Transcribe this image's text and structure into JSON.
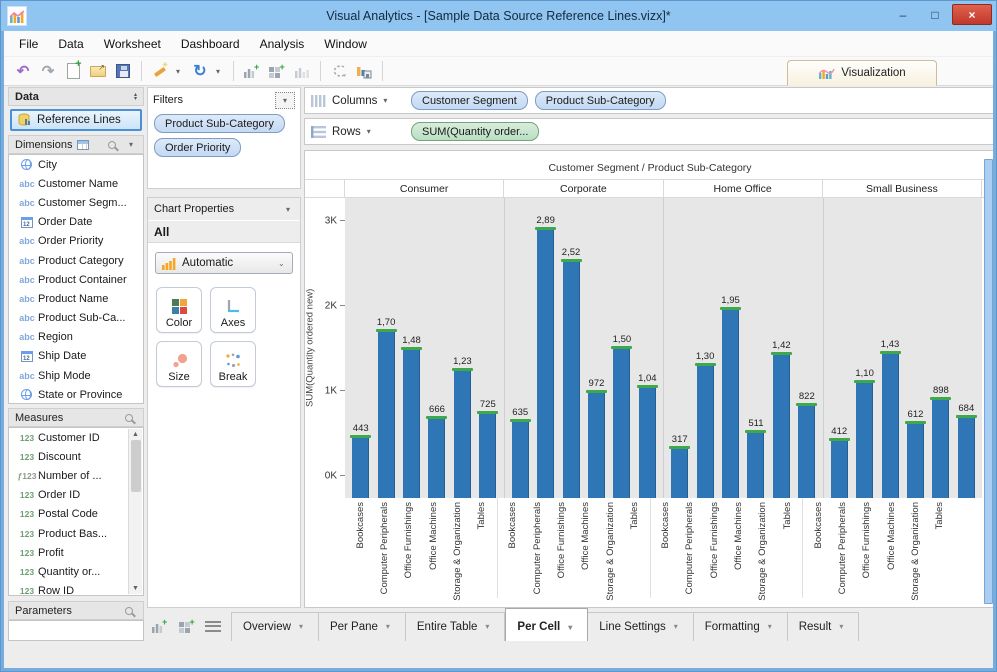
{
  "window": {
    "title": "Visual Analytics - [Sample Data Source Reference Lines.vizx]*"
  },
  "menu": {
    "items": [
      "File",
      "Data",
      "Worksheet",
      "Dashboard",
      "Analysis",
      "Window"
    ]
  },
  "toolbar": {
    "visualization_tab": "Visualization"
  },
  "sidebar": {
    "data_header": "Data",
    "reference_item": "Reference Lines",
    "dimensions": {
      "header": "Dimensions",
      "items": [
        {
          "icon": "globe",
          "label": "City"
        },
        {
          "icon": "abc",
          "label": "Customer Name"
        },
        {
          "icon": "abc",
          "label": "Customer Segm..."
        },
        {
          "icon": "calendar",
          "label": "Order Date"
        },
        {
          "icon": "abc",
          "label": "Order Priority"
        },
        {
          "icon": "abc",
          "label": "Product Category"
        },
        {
          "icon": "abc",
          "label": "Product Container"
        },
        {
          "icon": "abc",
          "label": "Product Name"
        },
        {
          "icon": "abc",
          "label": "Product Sub-Ca..."
        },
        {
          "icon": "abc",
          "label": "Region"
        },
        {
          "icon": "calendar",
          "label": "Ship Date"
        },
        {
          "icon": "abc",
          "label": "Ship Mode"
        },
        {
          "icon": "globe",
          "label": "State or Province"
        }
      ]
    },
    "measures": {
      "header": "Measures",
      "items": [
        {
          "icon": "123",
          "label": "Customer ID"
        },
        {
          "icon": "123",
          "label": "Discount"
        },
        {
          "icon": "fx123",
          "label": "Number of ..."
        },
        {
          "icon": "123",
          "label": "Order ID"
        },
        {
          "icon": "123",
          "label": "Postal Code"
        },
        {
          "icon": "123",
          "label": "Product Bas..."
        },
        {
          "icon": "123",
          "label": "Profit"
        },
        {
          "icon": "123",
          "label": "Quantity or..."
        },
        {
          "icon": "123",
          "label": "Row ID"
        }
      ]
    },
    "parameters": {
      "header": "Parameters"
    }
  },
  "filters": {
    "header": "Filters",
    "pills": [
      "Product Sub-Category",
      "Order Priority"
    ]
  },
  "chart_properties": {
    "header": "Chart Properties",
    "scope_label": "All",
    "mark_type": "Automatic",
    "buttons": [
      "Color",
      "Axes",
      "Size",
      "Break"
    ]
  },
  "shelves": {
    "columns_label": "Columns",
    "columns_pills": [
      "Customer Segment",
      "Product Sub-Category"
    ],
    "rows_label": "Rows",
    "rows_pills": [
      "SUM(Quantity order..."
    ]
  },
  "chart_data": {
    "type": "bar",
    "title": "Customer Segment / Product Sub-Category",
    "ylabel": "SUM(Quantity ordered new)",
    "yticks": [
      {
        "label": "0K",
        "value": 0
      },
      {
        "label": "1K",
        "value": 1000
      },
      {
        "label": "2K",
        "value": 2000
      },
      {
        "label": "3K",
        "value": 3000
      }
    ],
    "ylim": [
      0,
      3300
    ],
    "grid": false,
    "legend": false,
    "categories": [
      "Bookcases",
      "Computer Peripherals",
      "Office Furnishings",
      "Office Machines",
      "Storage & Organization",
      "Tables"
    ],
    "series": [
      {
        "name": "Consumer",
        "values": [
          443,
          1700,
          1480,
          666,
          1230,
          725
        ],
        "bar_labels": [
          "443",
          "1,70",
          "1,48",
          "666",
          "1,23",
          "725"
        ]
      },
      {
        "name": "Corporate",
        "values": [
          635,
          2890,
          2520,
          972,
          1500,
          1040
        ],
        "bar_labels": [
          "635",
          "2,89",
          "2,52",
          "972",
          "1,50",
          "1,04"
        ]
      },
      {
        "name": "Home Office",
        "values": [
          317,
          1300,
          1950,
          511,
          1420,
          822
        ],
        "bar_labels": [
          "317",
          "1,30",
          "1,95",
          "511",
          "1,42",
          "822"
        ]
      },
      {
        "name": "Small Business",
        "values": [
          412,
          1100,
          1430,
          612,
          898,
          684
        ],
        "bar_labels": [
          "412",
          "1,10",
          "1,43",
          "612",
          "898",
          "684"
        ]
      }
    ],
    "bar_color": "#2E76B5",
    "reference_line_color": "#3EA94B"
  },
  "bottom_tabs": [
    {
      "label": "Overview",
      "selected": false
    },
    {
      "label": "Per Pane",
      "selected": false
    },
    {
      "label": "Entire Table",
      "selected": false
    },
    {
      "label": "Per Cell",
      "selected": true
    },
    {
      "label": "Line Settings",
      "selected": false
    },
    {
      "label": "Formatting",
      "selected": false
    },
    {
      "label": "Result",
      "selected": false
    }
  ]
}
